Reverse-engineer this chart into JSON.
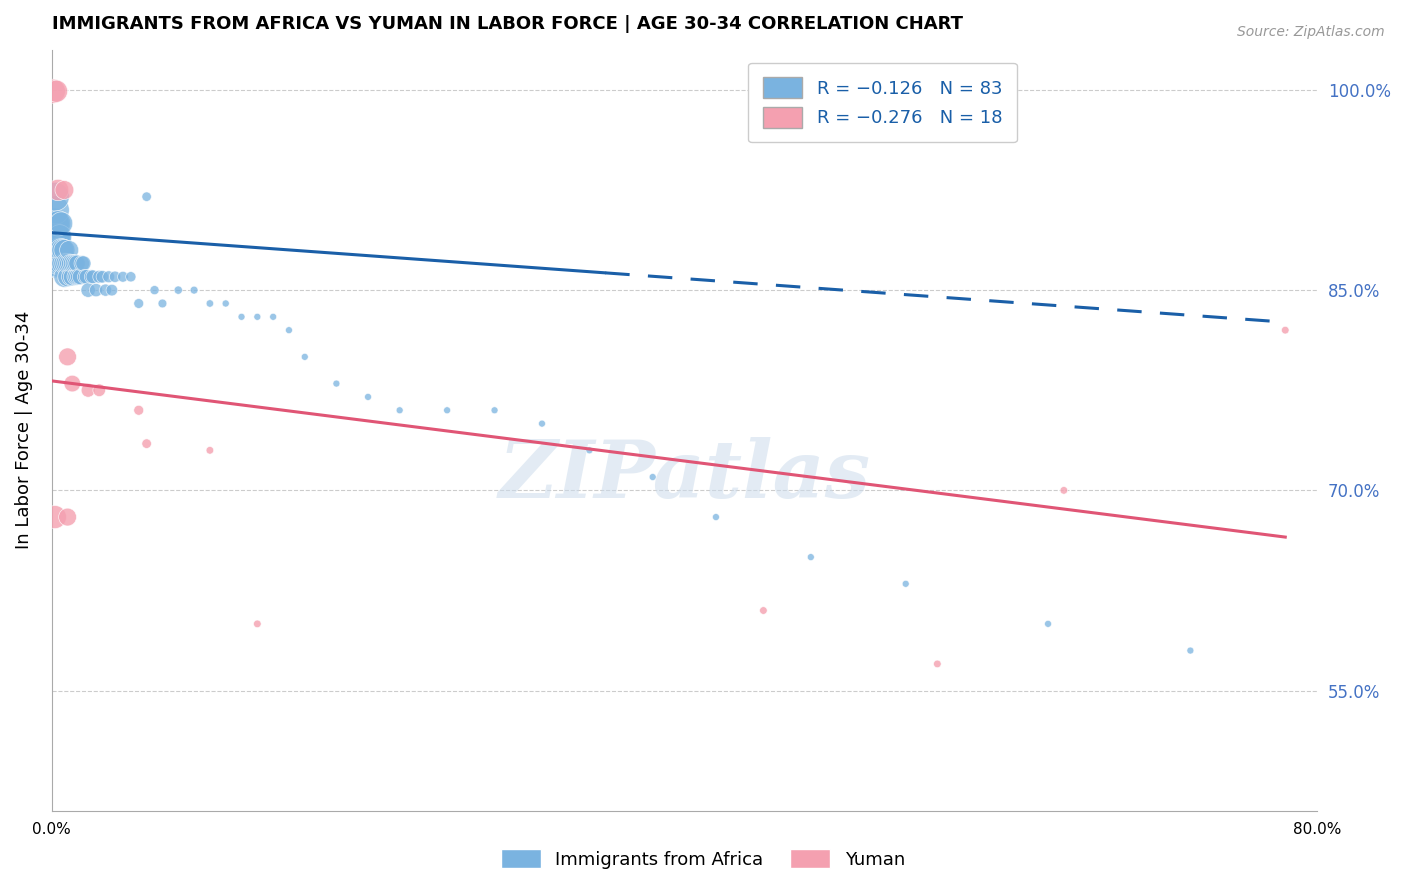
{
  "title": "IMMIGRANTS FROM AFRICA VS YUMAN IN LABOR FORCE | AGE 30-34 CORRELATION CHART",
  "source": "Source: ZipAtlas.com",
  "ylabel": "In Labor Force | Age 30-34",
  "xlim": [
    0.0,
    0.8
  ],
  "ylim": [
    0.46,
    1.03
  ],
  "yticks": [
    0.55,
    0.7,
    0.85,
    1.0
  ],
  "ytick_labels": [
    "55.0%",
    "70.0%",
    "85.0%",
    "100.0%"
  ],
  "xticks": [
    0.0,
    0.1,
    0.2,
    0.3,
    0.4,
    0.5,
    0.6,
    0.7,
    0.8
  ],
  "xtick_labels": [
    "0.0%",
    "",
    "",
    "",
    "",
    "",
    "",
    "",
    "80.0%"
  ],
  "color_africa": "#7ab3e0",
  "color_yuman": "#f4a0b0",
  "color_trendline_africa": "#1a5fa8",
  "color_trendline_yuman": "#e05575",
  "watermark": "ZIPatlas",
  "africa_x": [
    0.001,
    0.001,
    0.001,
    0.002,
    0.002,
    0.002,
    0.002,
    0.002,
    0.002,
    0.003,
    0.003,
    0.003,
    0.004,
    0.004,
    0.004,
    0.005,
    0.005,
    0.005,
    0.006,
    0.006,
    0.006,
    0.007,
    0.007,
    0.008,
    0.008,
    0.008,
    0.009,
    0.01,
    0.01,
    0.011,
    0.011,
    0.012,
    0.012,
    0.013,
    0.013,
    0.014,
    0.015,
    0.015,
    0.016,
    0.016,
    0.017,
    0.018,
    0.019,
    0.02,
    0.021,
    0.022,
    0.023,
    0.025,
    0.026,
    0.028,
    0.03,
    0.032,
    0.034,
    0.036,
    0.038,
    0.04,
    0.045,
    0.05,
    0.055,
    0.06,
    0.065,
    0.07,
    0.08,
    0.09,
    0.1,
    0.11,
    0.12,
    0.13,
    0.14,
    0.15,
    0.16,
    0.18,
    0.2,
    0.22,
    0.25,
    0.28,
    0.31,
    0.34,
    0.38,
    0.42,
    0.48,
    0.54,
    0.63,
    0.72
  ],
  "africa_y": [
    0.88,
    0.89,
    0.9,
    0.87,
    0.88,
    0.89,
    0.9,
    0.91,
    0.92,
    0.87,
    0.88,
    0.89,
    0.88,
    0.89,
    0.9,
    0.87,
    0.88,
    0.89,
    0.87,
    0.88,
    0.9,
    0.87,
    0.88,
    0.86,
    0.87,
    0.88,
    0.87,
    0.86,
    0.87,
    0.87,
    0.88,
    0.86,
    0.87,
    0.86,
    0.87,
    0.87,
    0.86,
    0.87,
    0.86,
    0.87,
    0.86,
    0.86,
    0.87,
    0.87,
    0.86,
    0.86,
    0.85,
    0.86,
    0.86,
    0.85,
    0.86,
    0.86,
    0.85,
    0.86,
    0.85,
    0.86,
    0.86,
    0.86,
    0.84,
    0.92,
    0.85,
    0.84,
    0.85,
    0.85,
    0.84,
    0.84,
    0.83,
    0.83,
    0.83,
    0.82,
    0.8,
    0.78,
    0.77,
    0.76,
    0.76,
    0.76,
    0.75,
    0.73,
    0.71,
    0.68,
    0.65,
    0.63,
    0.6,
    0.58
  ],
  "yuman_x": [
    0.001,
    0.003,
    0.004,
    0.008,
    0.01,
    0.013,
    0.023,
    0.03,
    0.055,
    0.06,
    0.1,
    0.13,
    0.56,
    0.64,
    0.78,
    0.002,
    0.01,
    0.45
  ],
  "yuman_y": [
    0.999,
    0.999,
    0.925,
    0.925,
    0.8,
    0.78,
    0.775,
    0.775,
    0.76,
    0.735,
    0.73,
    0.6,
    0.57,
    0.7,
    0.82,
    0.68,
    0.68,
    0.61
  ],
  "africa_trendline_x0": 0.0,
  "africa_trendline_x_solid_end": 0.35,
  "africa_trendline_x1": 0.78,
  "africa_trendline_y0": 0.893,
  "africa_trendline_y1": 0.826,
  "yuman_trendline_x0": 0.0,
  "yuman_trendline_x1": 0.78,
  "yuman_trendline_y0": 0.782,
  "yuman_trendline_y1": 0.665
}
